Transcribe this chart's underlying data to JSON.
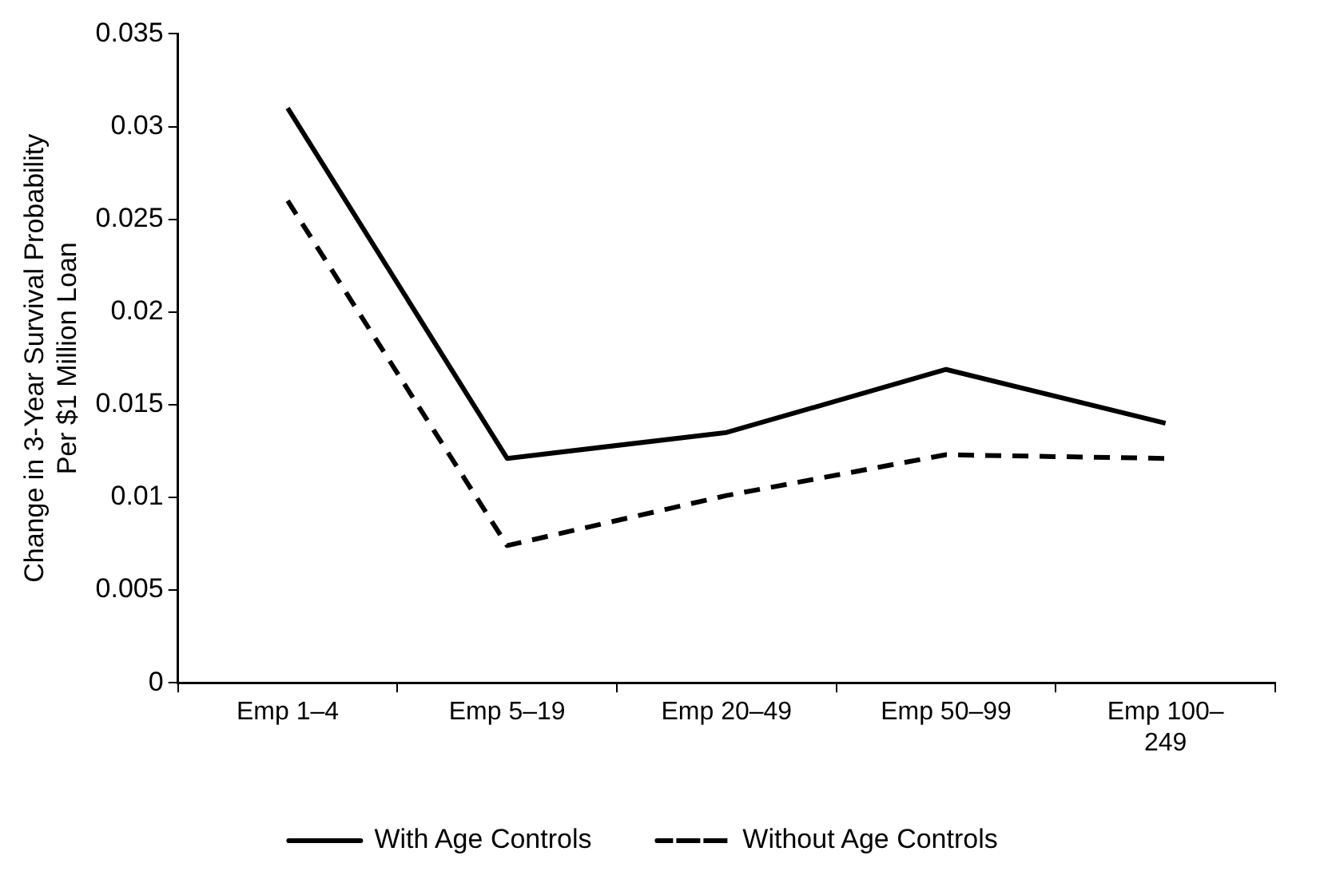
{
  "chart_data": {
    "type": "line",
    "ylabel": "Change in 3-Year Survival Probability\nPer $1 Million Loan",
    "categories": [
      "Emp 1–4",
      "Emp 5–19",
      "Emp 20–49",
      "Emp 50–99",
      "Emp 100–249"
    ],
    "series": [
      {
        "name": "With Age Controls",
        "color": "#000000",
        "line_style": "solid",
        "values": [
          0.031,
          0.0121,
          0.0135,
          0.0169,
          0.014
        ]
      },
      {
        "name": "Without Age Controls",
        "color": "#000000",
        "line_style": "dashed",
        "values": [
          0.026,
          0.0074,
          0.0101,
          0.0123,
          0.0121
        ]
      }
    ],
    "ylim": [
      0,
      0.035
    ],
    "yticks": [
      0,
      0.005,
      0.01,
      0.015,
      0.02,
      0.025,
      0.03,
      0.035
    ],
    "grid": false,
    "legend": "bottom",
    "marker": "none"
  }
}
